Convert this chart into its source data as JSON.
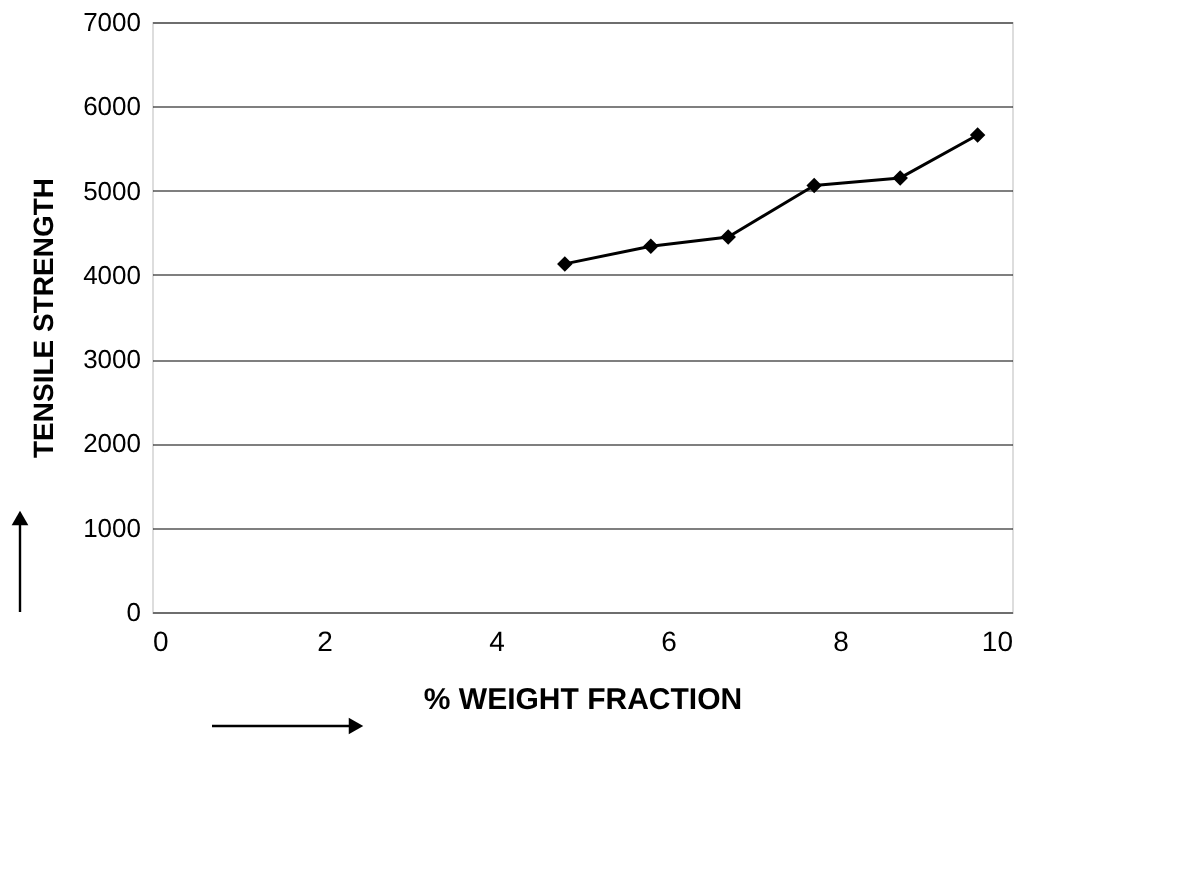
{
  "chart_data": {
    "type": "line",
    "xlabel": "% WEIGHT FRACTION",
    "ylabel": "TENSILE STRENGTH",
    "x": [
      4.8,
      5.8,
      6.7,
      7.7,
      8.7,
      9.6
    ],
    "series": [
      {
        "color": "#000000",
        "values": [
          4130,
          4340,
          4450,
          5060,
          5150,
          5660
        ]
      }
    ],
    "xlim": [
      0,
      10
    ],
    "xticks": [
      0,
      2,
      4,
      6,
      8,
      10
    ],
    "ylim": [
      0,
      7000
    ],
    "yticks": [
      0,
      1000,
      2000,
      3000,
      4000,
      5000,
      6000,
      7000
    ],
    "grid": "y",
    "marker": "diamond",
    "line_style": "solid"
  }
}
